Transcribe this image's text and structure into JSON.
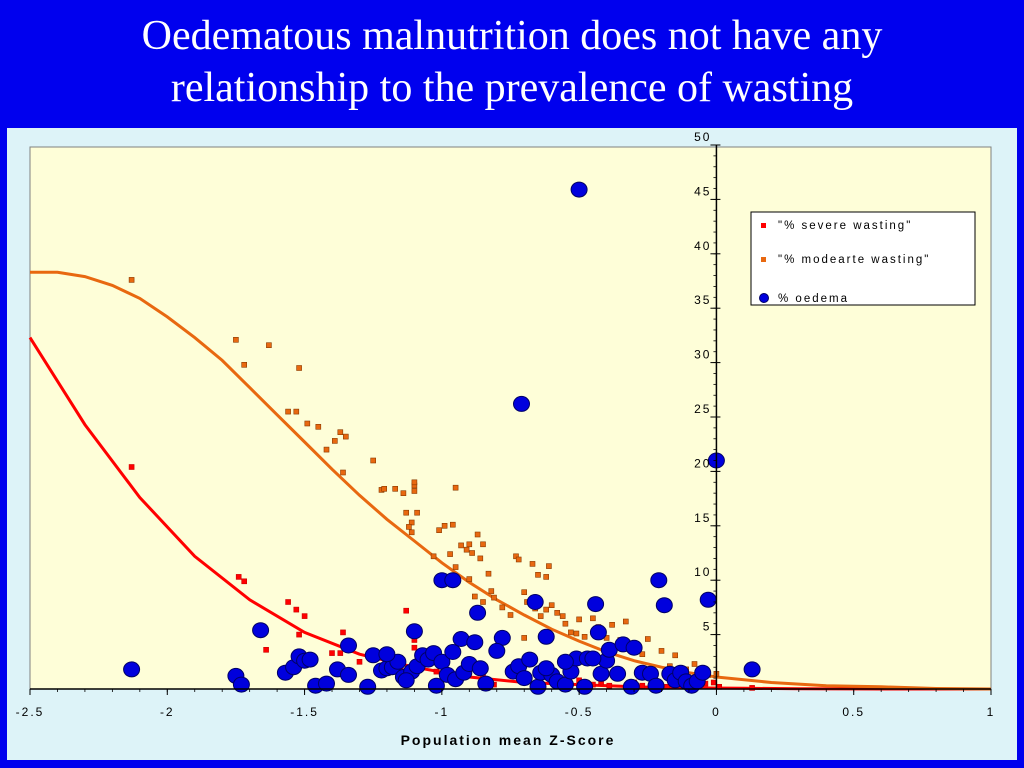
{
  "title_lines": [
    "Oedematous malnutrition does not have any",
    "relationship to the prevalence of wasting"
  ],
  "colors": {
    "background": "#0000ee",
    "chart_area": "#ddf3f8",
    "plot_area": "#fefed8",
    "severe": "#ff0000",
    "moderate": "#e86810",
    "oedema_fill": "#0000dd",
    "oedema_stroke": "#000066"
  },
  "chart_data": {
    "type": "scatter",
    "xlabel": "Population mean Z-Score",
    "ylabel": "",
    "xlim": [
      -2.5,
      1
    ],
    "ylim": [
      0,
      50
    ],
    "x_ticks": [
      "-2.5",
      "-2",
      "-1.5",
      "-1",
      "-0.5",
      "0",
      "0.5",
      "1"
    ],
    "y_ticks": [
      "5",
      "10",
      "15",
      "20",
      "25",
      "30",
      "35",
      "40",
      "45",
      "50"
    ],
    "grid": false,
    "legend_position": "top-right",
    "series": [
      {
        "name": "\"% severe wasting\"",
        "marker": "square",
        "color": "#ff0000",
        "points": [
          [
            -2.13,
            20.4
          ],
          [
            -1.74,
            10.3
          ],
          [
            -1.72,
            9.9
          ],
          [
            -1.56,
            8
          ],
          [
            -1.53,
            7.3
          ],
          [
            -1.5,
            6.7
          ],
          [
            -1.64,
            3.6
          ],
          [
            -1.52,
            5
          ],
          [
            -1.36,
            5.2
          ],
          [
            -1.4,
            3.3
          ],
          [
            -1.37,
            3.3
          ],
          [
            -1.3,
            2.5
          ],
          [
            -1.23,
            2.9
          ],
          [
            -1.2,
            2.6
          ],
          [
            -1.15,
            2
          ],
          [
            -1.13,
            7.2
          ],
          [
            -1.1,
            3.8
          ],
          [
            -1.1,
            4.5
          ],
          [
            -1.05,
            2.3
          ],
          [
            -1.02,
            1.6
          ],
          [
            -0.99,
            2.2
          ],
          [
            -0.96,
            0.8
          ],
          [
            -0.92,
            1.6
          ],
          [
            -0.88,
            1.9
          ],
          [
            -0.85,
            1.2
          ],
          [
            -0.81,
            0.4
          ],
          [
            -0.76,
            1.6
          ],
          [
            -0.72,
            1.1
          ],
          [
            -0.7,
            0.7
          ],
          [
            -0.65,
            1.3
          ],
          [
            -0.6,
            1
          ],
          [
            -0.55,
            0.6
          ],
          [
            -0.5,
            0.8
          ],
          [
            -0.45,
            0.4
          ],
          [
            -0.42,
            0.6
          ],
          [
            -0.39,
            0.3
          ],
          [
            -0.35,
            1.2
          ],
          [
            -0.3,
            0.6
          ],
          [
            -0.27,
            0.3
          ],
          [
            -0.24,
            1.1
          ],
          [
            -0.22,
            0.7
          ],
          [
            -0.18,
            0.2
          ],
          [
            -0.15,
            0.8
          ],
          [
            -0.12,
            0.6
          ],
          [
            -0.08,
            0.5
          ],
          [
            -0.04,
            0.5
          ],
          [
            -0.01,
            0.6
          ],
          [
            0.01,
            0.2
          ],
          [
            0.13,
            0.1
          ]
        ]
      },
      {
        "name": "\"% modearte wasting\"",
        "marker": "square",
        "color": "#e86810",
        "points": [
          [
            -2.13,
            37.6
          ],
          [
            -1.75,
            32.1
          ],
          [
            -1.72,
            29.8
          ],
          [
            -1.63,
            31.6
          ],
          [
            -1.52,
            29.5
          ],
          [
            -1.56,
            25.5
          ],
          [
            -1.53,
            25.5
          ],
          [
            -1.49,
            24.4
          ],
          [
            -1.45,
            24.1
          ],
          [
            -1.42,
            22
          ],
          [
            -1.39,
            22.8
          ],
          [
            -1.37,
            23.6
          ],
          [
            -1.35,
            23.2
          ],
          [
            -1.36,
            19.9
          ],
          [
            -1.25,
            21
          ],
          [
            -1.22,
            18.3
          ],
          [
            -1.21,
            18.4
          ],
          [
            -1.17,
            18.4
          ],
          [
            -1.14,
            18
          ],
          [
            -1.1,
            18.2
          ],
          [
            -1.1,
            18.7
          ],
          [
            -1.1,
            19
          ],
          [
            -1.13,
            16.2
          ],
          [
            -1.09,
            16.2
          ],
          [
            -1.11,
            15.3
          ],
          [
            -1.12,
            14.9
          ],
          [
            -1.11,
            14.4
          ],
          [
            -1.03,
            12.2
          ],
          [
            -1.01,
            14.6
          ],
          [
            -0.99,
            15
          ],
          [
            -0.96,
            15.1
          ],
          [
            -0.97,
            12.4
          ],
          [
            -0.95,
            11.2
          ],
          [
            -0.93,
            13.2
          ],
          [
            -0.91,
            12.8
          ],
          [
            -0.9,
            13.3
          ],
          [
            -0.89,
            12.5
          ],
          [
            -0.87,
            14.2
          ],
          [
            -0.86,
            12
          ],
          [
            -0.85,
            13.3
          ],
          [
            -0.83,
            10.6
          ],
          [
            -0.82,
            9
          ],
          [
            -0.81,
            8.4
          ],
          [
            -0.95,
            18.5
          ],
          [
            -1.0,
            10
          ],
          [
            -0.9,
            10.1
          ],
          [
            -0.88,
            8.5
          ],
          [
            -0.85,
            8
          ],
          [
            -0.73,
            12.2
          ],
          [
            -0.72,
            11.9
          ],
          [
            -0.7,
            8.9
          ],
          [
            -0.69,
            8
          ],
          [
            -0.66,
            7.4
          ],
          [
            -0.64,
            6.7
          ],
          [
            -0.62,
            7.3
          ],
          [
            -0.6,
            7.7
          ],
          [
            -0.58,
            7
          ],
          [
            -0.56,
            6.7
          ],
          [
            -0.55,
            6
          ],
          [
            -0.53,
            5.2
          ],
          [
            -0.51,
            5.1
          ],
          [
            -0.5,
            6.4
          ],
          [
            -0.48,
            4.8
          ],
          [
            -0.45,
            6.5
          ],
          [
            -0.43,
            5.7
          ],
          [
            -0.4,
            4.7
          ],
          [
            -0.38,
            5.9
          ],
          [
            -0.35,
            4.5
          ],
          [
            -0.33,
            6.2
          ],
          [
            -0.29,
            4
          ],
          [
            -0.27,
            3.2
          ],
          [
            -0.25,
            4.6
          ],
          [
            -0.2,
            3.5
          ],
          [
            -0.17,
            2.1
          ],
          [
            -0.15,
            3.1
          ],
          [
            -0.11,
            1.8
          ],
          [
            -0.08,
            2.3
          ],
          [
            -0.05,
            1.6
          ],
          [
            -0.03,
            1.3
          ],
          [
            0.0,
            1.4
          ],
          [
            0.13,
            1.6
          ],
          [
            -0.65,
            10.5
          ],
          [
            -0.62,
            10.3
          ],
          [
            -0.67,
            11.5
          ],
          [
            -0.61,
            11.3
          ],
          [
            -0.78,
            7.5
          ],
          [
            -0.75,
            6.8
          ],
          [
            -0.7,
            4.7
          ]
        ]
      },
      {
        "name": "% oedema",
        "marker": "circle",
        "color": "#0000dd",
        "points": [
          [
            -2.13,
            1.8
          ],
          [
            -1.75,
            1.2
          ],
          [
            -1.73,
            0.4
          ],
          [
            -1.66,
            5.4
          ],
          [
            -1.57,
            1.5
          ],
          [
            -1.54,
            2
          ],
          [
            -1.52,
            3
          ],
          [
            -1.5,
            2.6
          ],
          [
            -1.48,
            2.7
          ],
          [
            -1.46,
            0.3
          ],
          [
            -1.42,
            0.5
          ],
          [
            -1.38,
            1.8
          ],
          [
            -1.34,
            1.3
          ],
          [
            -1.34,
            4
          ],
          [
            -1.27,
            0.2
          ],
          [
            -1.25,
            3.1
          ],
          [
            -1.22,
            1.7
          ],
          [
            -1.2,
            1.9
          ],
          [
            -1.18,
            2
          ],
          [
            -1.16,
            2.5
          ],
          [
            -1.14,
            1.1
          ],
          [
            -1.11,
            1.6
          ],
          [
            -1.09,
            2.1
          ],
          [
            -1.1,
            5.3
          ],
          [
            -1.07,
            3.1
          ],
          [
            -1.05,
            2.7
          ],
          [
            -1.03,
            3.3
          ],
          [
            -1.02,
            0.3
          ],
          [
            -1.0,
            2.5
          ],
          [
            -1.0,
            10
          ],
          [
            -0.96,
            10
          ],
          [
            -0.98,
            1.3
          ],
          [
            -0.96,
            3.4
          ],
          [
            -0.95,
            0.9
          ],
          [
            -0.93,
            4.6
          ],
          [
            -0.92,
            1.5
          ],
          [
            -0.9,
            2.3
          ],
          [
            -0.88,
            4.3
          ],
          [
            -0.87,
            7.0
          ],
          [
            -0.86,
            1.9
          ],
          [
            -0.84,
            0.5
          ],
          [
            -0.78,
            4.7
          ],
          [
            -0.74,
            1.6
          ],
          [
            -0.72,
            2.1
          ],
          [
            -0.71,
            26.2
          ],
          [
            -0.7,
            1
          ],
          [
            -0.68,
            2.7
          ],
          [
            -0.66,
            8
          ],
          [
            -0.65,
            0.2
          ],
          [
            -0.64,
            1.5
          ],
          [
            -0.62,
            4.8
          ],
          [
            -0.6,
            1.3
          ],
          [
            -0.58,
            0.7
          ],
          [
            -0.55,
            0.4
          ],
          [
            -0.53,
            1.6
          ],
          [
            -0.51,
            2.8
          ],
          [
            -0.5,
            45.9
          ],
          [
            -0.48,
            0.2
          ],
          [
            -0.47,
            2.8
          ],
          [
            -0.44,
            7.8
          ],
          [
            -0.43,
            5.2
          ],
          [
            -0.42,
            1.4
          ],
          [
            -0.4,
            2.6
          ],
          [
            -0.39,
            3.6
          ],
          [
            -0.36,
            1.4
          ],
          [
            -0.34,
            4.1
          ],
          [
            -0.31,
            0.2
          ],
          [
            -0.3,
            3.8
          ],
          [
            -0.27,
            1.5
          ],
          [
            -0.24,
            1.4
          ],
          [
            -0.22,
            0.3
          ],
          [
            -0.21,
            10
          ],
          [
            -0.19,
            7.7
          ],
          [
            -0.17,
            1.4
          ],
          [
            -0.15,
            0.8
          ],
          [
            -0.13,
            1.5
          ],
          [
            -0.11,
            0.7
          ],
          [
            -0.09,
            0.3
          ],
          [
            -0.07,
            0.7
          ],
          [
            -0.05,
            1.5
          ],
          [
            -0.03,
            8.2
          ],
          [
            0.0,
            21
          ],
          [
            0.13,
            1.8
          ],
          [
            -0.55,
            2.5
          ],
          [
            -0.45,
            2.8
          ],
          [
            -0.8,
            3.5
          ],
          [
            -0.62,
            1.9
          ],
          [
            -1.13,
            0.8
          ],
          [
            -1.2,
            3.2
          ]
        ]
      }
    ],
    "trend_lines": [
      {
        "series": "\"% severe wasting\"",
        "color": "#ff0000",
        "points": [
          [
            -2.5,
            32.3
          ],
          [
            -2.3,
            24.3
          ],
          [
            -2.1,
            17.6
          ],
          [
            -1.9,
            12.2
          ],
          [
            -1.7,
            8.2
          ],
          [
            -1.5,
            5.2
          ],
          [
            -1.3,
            3.2
          ],
          [
            -1.1,
            2
          ],
          [
            -0.9,
            1.1
          ],
          [
            -0.7,
            0.6
          ],
          [
            -0.5,
            0.4
          ],
          [
            -0.3,
            0.2
          ],
          [
            -0.1,
            0.1
          ],
          [
            0.1,
            0.06
          ],
          [
            0.3,
            0.03
          ],
          [
            0.6,
            0
          ],
          [
            1,
            0
          ]
        ]
      },
      {
        "series": "\"% modearte wasting\"",
        "color": "#e86810",
        "points": [
          [
            -2.5,
            38.3
          ],
          [
            -2.4,
            38.3
          ],
          [
            -2.3,
            37.9
          ],
          [
            -2.2,
            37.1
          ],
          [
            -2.1,
            35.9
          ],
          [
            -2,
            34.2
          ],
          [
            -1.9,
            32.3
          ],
          [
            -1.8,
            30.2
          ],
          [
            -1.7,
            27.7
          ],
          [
            -1.6,
            25.2
          ],
          [
            -1.5,
            22.7
          ],
          [
            -1.4,
            20.2
          ],
          [
            -1.3,
            17.8
          ],
          [
            -1.2,
            15.6
          ],
          [
            -1.1,
            13.6
          ],
          [
            -1,
            11.6
          ],
          [
            -0.9,
            9.8
          ],
          [
            -0.8,
            8.2
          ],
          [
            -0.7,
            6.8
          ],
          [
            -0.6,
            5.5
          ],
          [
            -0.5,
            4.4
          ],
          [
            -0.4,
            3.4
          ],
          [
            -0.3,
            2.6
          ],
          [
            -0.2,
            2
          ],
          [
            -0.1,
            1.5
          ],
          [
            0,
            1.1
          ],
          [
            0.2,
            0.6
          ],
          [
            0.4,
            0.3
          ],
          [
            0.6,
            0.2
          ],
          [
            0.8,
            0.05
          ],
          [
            1,
            0
          ]
        ]
      }
    ]
  }
}
